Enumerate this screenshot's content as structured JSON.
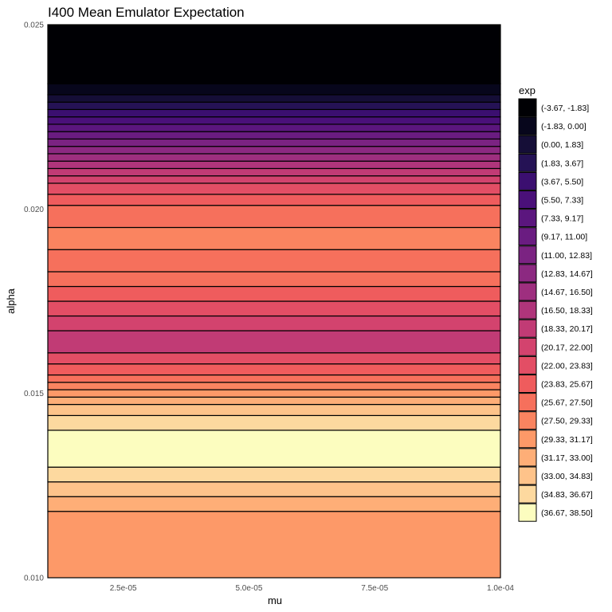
{
  "chart_data": {
    "type": "heatmap",
    "title": "I400 Mean Emulator Expectation",
    "xlabel": "mu",
    "ylabel": "alpha",
    "xlim": [
      1e-05,
      0.0001
    ],
    "ylim": [
      0.01,
      0.025
    ],
    "x_ticks": [
      {
        "value": 2.5e-05,
        "label": "2.5e-05"
      },
      {
        "value": 5e-05,
        "label": "5.0e-05"
      },
      {
        "value": 7.5e-05,
        "label": "7.5e-05"
      },
      {
        "value": 0.0001,
        "label": "1.0e-04"
      }
    ],
    "y_ticks": [
      {
        "value": 0.01,
        "label": "0.010"
      },
      {
        "value": 0.015,
        "label": "0.015"
      },
      {
        "value": 0.02,
        "label": "0.020"
      },
      {
        "value": 0.025,
        "label": "0.025"
      }
    ],
    "grid": false,
    "legend": {
      "title": "exp",
      "position": "right",
      "bins": [
        {
          "label": "(-3.67, -1.83]",
          "color": "#000004"
        },
        {
          "label": "(-1.83, 0.00]",
          "color": "#07061c"
        },
        {
          "label": "(0.00, 1.83]",
          "color": "#150e37"
        },
        {
          "label": "(1.83, 3.67]",
          "color": "#251255"
        },
        {
          "label": "(3.67, 5.50]",
          "color": "#3b0f70"
        },
        {
          "label": "(5.50, 7.33]",
          "color": "#4a1079"
        },
        {
          "label": "(7.33, 9.17]",
          "color": "#5b167e"
        },
        {
          "label": "(9.17, 11.00]",
          "color": "#6a1c81"
        },
        {
          "label": "(11.00, 12.83]",
          "color": "#7b2382"
        },
        {
          "label": "(12.83, 14.67]",
          "color": "#8c2981"
        },
        {
          "label": "(14.67, 16.50]",
          "color": "#9e2f7f"
        },
        {
          "label": "(16.50, 18.33]",
          "color": "#b0357b"
        },
        {
          "label": "(18.33, 20.17]",
          "color": "#c13b75"
        },
        {
          "label": "(20.17, 22.00]",
          "color": "#d3436e"
        },
        {
          "label": "(22.00, 23.83]",
          "color": "#e34e65"
        },
        {
          "label": "(23.83, 25.67]",
          "color": "#ef5c5d"
        },
        {
          "label": "(25.67, 27.50]",
          "color": "#f6705c"
        },
        {
          "label": "(27.50, 29.33]",
          "color": "#fa8460"
        },
        {
          "label": "(29.33, 31.17]",
          "color": "#fd9968"
        },
        {
          "label": "(31.17, 33.00]",
          "color": "#feae77"
        },
        {
          "label": "(33.00, 34.83]",
          "color": "#fec38a"
        },
        {
          "label": "(34.83, 36.67]",
          "color": "#fdd99f"
        },
        {
          "label": "(36.67, 38.50]",
          "color": "#fcfdbf"
        }
      ]
    },
    "bands": [
      {
        "alpha_from": 0.01,
        "alpha_to": 0.0118,
        "bin": 18
      },
      {
        "alpha_from": 0.0118,
        "alpha_to": 0.0122,
        "bin": 19
      },
      {
        "alpha_from": 0.0122,
        "alpha_to": 0.0126,
        "bin": 20
      },
      {
        "alpha_from": 0.0126,
        "alpha_to": 0.013,
        "bin": 21
      },
      {
        "alpha_from": 0.013,
        "alpha_to": 0.014,
        "bin": 22
      },
      {
        "alpha_from": 0.014,
        "alpha_to": 0.0144,
        "bin": 21
      },
      {
        "alpha_from": 0.0144,
        "alpha_to": 0.0147,
        "bin": 20
      },
      {
        "alpha_from": 0.0147,
        "alpha_to": 0.0149,
        "bin": 19
      },
      {
        "alpha_from": 0.0149,
        "alpha_to": 0.0151,
        "bin": 18
      },
      {
        "alpha_from": 0.0151,
        "alpha_to": 0.0153,
        "bin": 17
      },
      {
        "alpha_from": 0.0153,
        "alpha_to": 0.0155,
        "bin": 16
      },
      {
        "alpha_from": 0.0155,
        "alpha_to": 0.0158,
        "bin": 15
      },
      {
        "alpha_from": 0.0158,
        "alpha_to": 0.0161,
        "bin": 14
      },
      {
        "alpha_from": 0.0161,
        "alpha_to": 0.0167,
        "bin": 12
      },
      {
        "alpha_from": 0.0167,
        "alpha_to": 0.0171,
        "bin": 13
      },
      {
        "alpha_from": 0.0171,
        "alpha_to": 0.0175,
        "bin": 14
      },
      {
        "alpha_from": 0.0175,
        "alpha_to": 0.0179,
        "bin": 15
      },
      {
        "alpha_from": 0.0179,
        "alpha_to": 0.0183,
        "bin": 16
      },
      {
        "alpha_from": 0.0183,
        "alpha_to": 0.0189,
        "bin": 16
      },
      {
        "alpha_from": 0.0189,
        "alpha_to": 0.0195,
        "bin": 17
      },
      {
        "alpha_from": 0.0195,
        "alpha_to": 0.0201,
        "bin": 16
      },
      {
        "alpha_from": 0.0201,
        "alpha_to": 0.0204,
        "bin": 15
      },
      {
        "alpha_from": 0.0204,
        "alpha_to": 0.0207,
        "bin": 14
      },
      {
        "alpha_from": 0.0207,
        "alpha_to": 0.0209,
        "bin": 13
      },
      {
        "alpha_from": 0.0209,
        "alpha_to": 0.0211,
        "bin": 12
      },
      {
        "alpha_from": 0.0211,
        "alpha_to": 0.0213,
        "bin": 11
      },
      {
        "alpha_from": 0.0213,
        "alpha_to": 0.0215,
        "bin": 10
      },
      {
        "alpha_from": 0.0215,
        "alpha_to": 0.0217,
        "bin": 9
      },
      {
        "alpha_from": 0.0217,
        "alpha_to": 0.0219,
        "bin": 8
      },
      {
        "alpha_from": 0.0219,
        "alpha_to": 0.0221,
        "bin": 7
      },
      {
        "alpha_from": 0.0221,
        "alpha_to": 0.0223,
        "bin": 6
      },
      {
        "alpha_from": 0.0223,
        "alpha_to": 0.0225,
        "bin": 5
      },
      {
        "alpha_from": 0.0225,
        "alpha_to": 0.0227,
        "bin": 4
      },
      {
        "alpha_from": 0.0227,
        "alpha_to": 0.0229,
        "bin": 3
      },
      {
        "alpha_from": 0.0229,
        "alpha_to": 0.0231,
        "bin": 2
      },
      {
        "alpha_from": 0.0231,
        "alpha_to": 0.0234,
        "bin": 1
      },
      {
        "alpha_from": 0.0234,
        "alpha_to": 0.025,
        "bin": 0
      }
    ]
  }
}
